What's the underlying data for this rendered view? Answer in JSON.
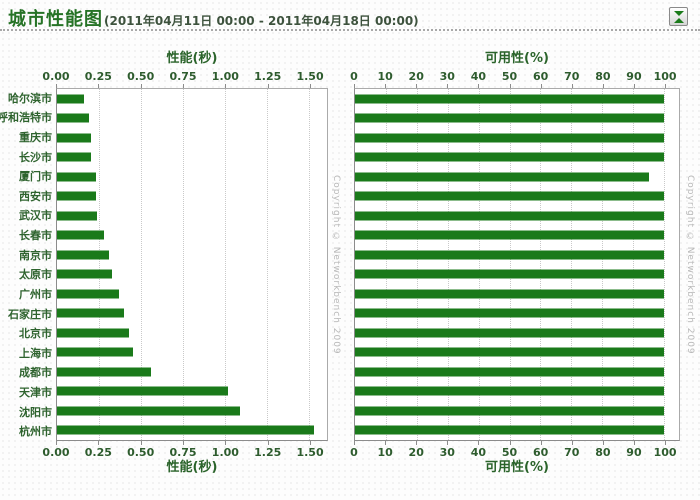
{
  "header": {
    "title": "城市性能图",
    "date_range": "(2011年04月11日 00:00 - 2011年04月18日 00:00)"
  },
  "copyright": "Copyright © Networkbench 2009",
  "colors": {
    "bar": "#1a7a1a",
    "title": "#267326",
    "axis_text": "#2e5c2e",
    "gridline": "#c9c9c9"
  },
  "chart_data": [
    {
      "type": "bar",
      "orientation": "horizontal",
      "title": "性能(秒)",
      "xlabel": "性能(秒)",
      "ylabel": "",
      "categories": [
        "哈尔滨市",
        "呼和浩特市",
        "重庆市",
        "长沙市",
        "厦门市",
        "西安市",
        "武汉市",
        "长春市",
        "南京市",
        "太原市",
        "广州市",
        "石家庄市",
        "北京市",
        "上海市",
        "成都市",
        "天津市",
        "沈阳市",
        "杭州市"
      ],
      "values": [
        0.16,
        0.19,
        0.2,
        0.2,
        0.23,
        0.23,
        0.24,
        0.28,
        0.31,
        0.33,
        0.37,
        0.4,
        0.43,
        0.45,
        0.56,
        1.02,
        1.09,
        1.53
      ],
      "xlim": [
        0,
        1.5
      ],
      "tick_labels": [
        "0.00",
        "0.25",
        "0.50",
        "0.75",
        "1.00",
        "1.25",
        "1.50"
      ],
      "tick_values": [
        0,
        0.25,
        0.5,
        0.75,
        1.0,
        1.25,
        1.5
      ],
      "scale_max": 1.606,
      "grid": true,
      "legend": "none"
    },
    {
      "type": "bar",
      "orientation": "horizontal",
      "title": "可用性(%)",
      "xlabel": "可用性(%)",
      "ylabel": "",
      "categories": [
        "哈尔滨市",
        "呼和浩特市",
        "重庆市",
        "长沙市",
        "厦门市",
        "西安市",
        "武汉市",
        "长春市",
        "南京市",
        "太原市",
        "广州市",
        "石家庄市",
        "北京市",
        "上海市",
        "成都市",
        "天津市",
        "沈阳市",
        "杭州市"
      ],
      "values": [
        100,
        100,
        100,
        100,
        95,
        100,
        100,
        100,
        100,
        100,
        100,
        100,
        100,
        100,
        100,
        100,
        100,
        100
      ],
      "xlim": [
        0,
        100
      ],
      "tick_labels": [
        "0",
        "10",
        "20",
        "30",
        "40",
        "50",
        "60",
        "70",
        "80",
        "90",
        "100"
      ],
      "tick_values": [
        0,
        10,
        20,
        30,
        40,
        50,
        60,
        70,
        80,
        90,
        100
      ],
      "scale_max": 104.8,
      "grid": true,
      "legend": "none"
    }
  ]
}
